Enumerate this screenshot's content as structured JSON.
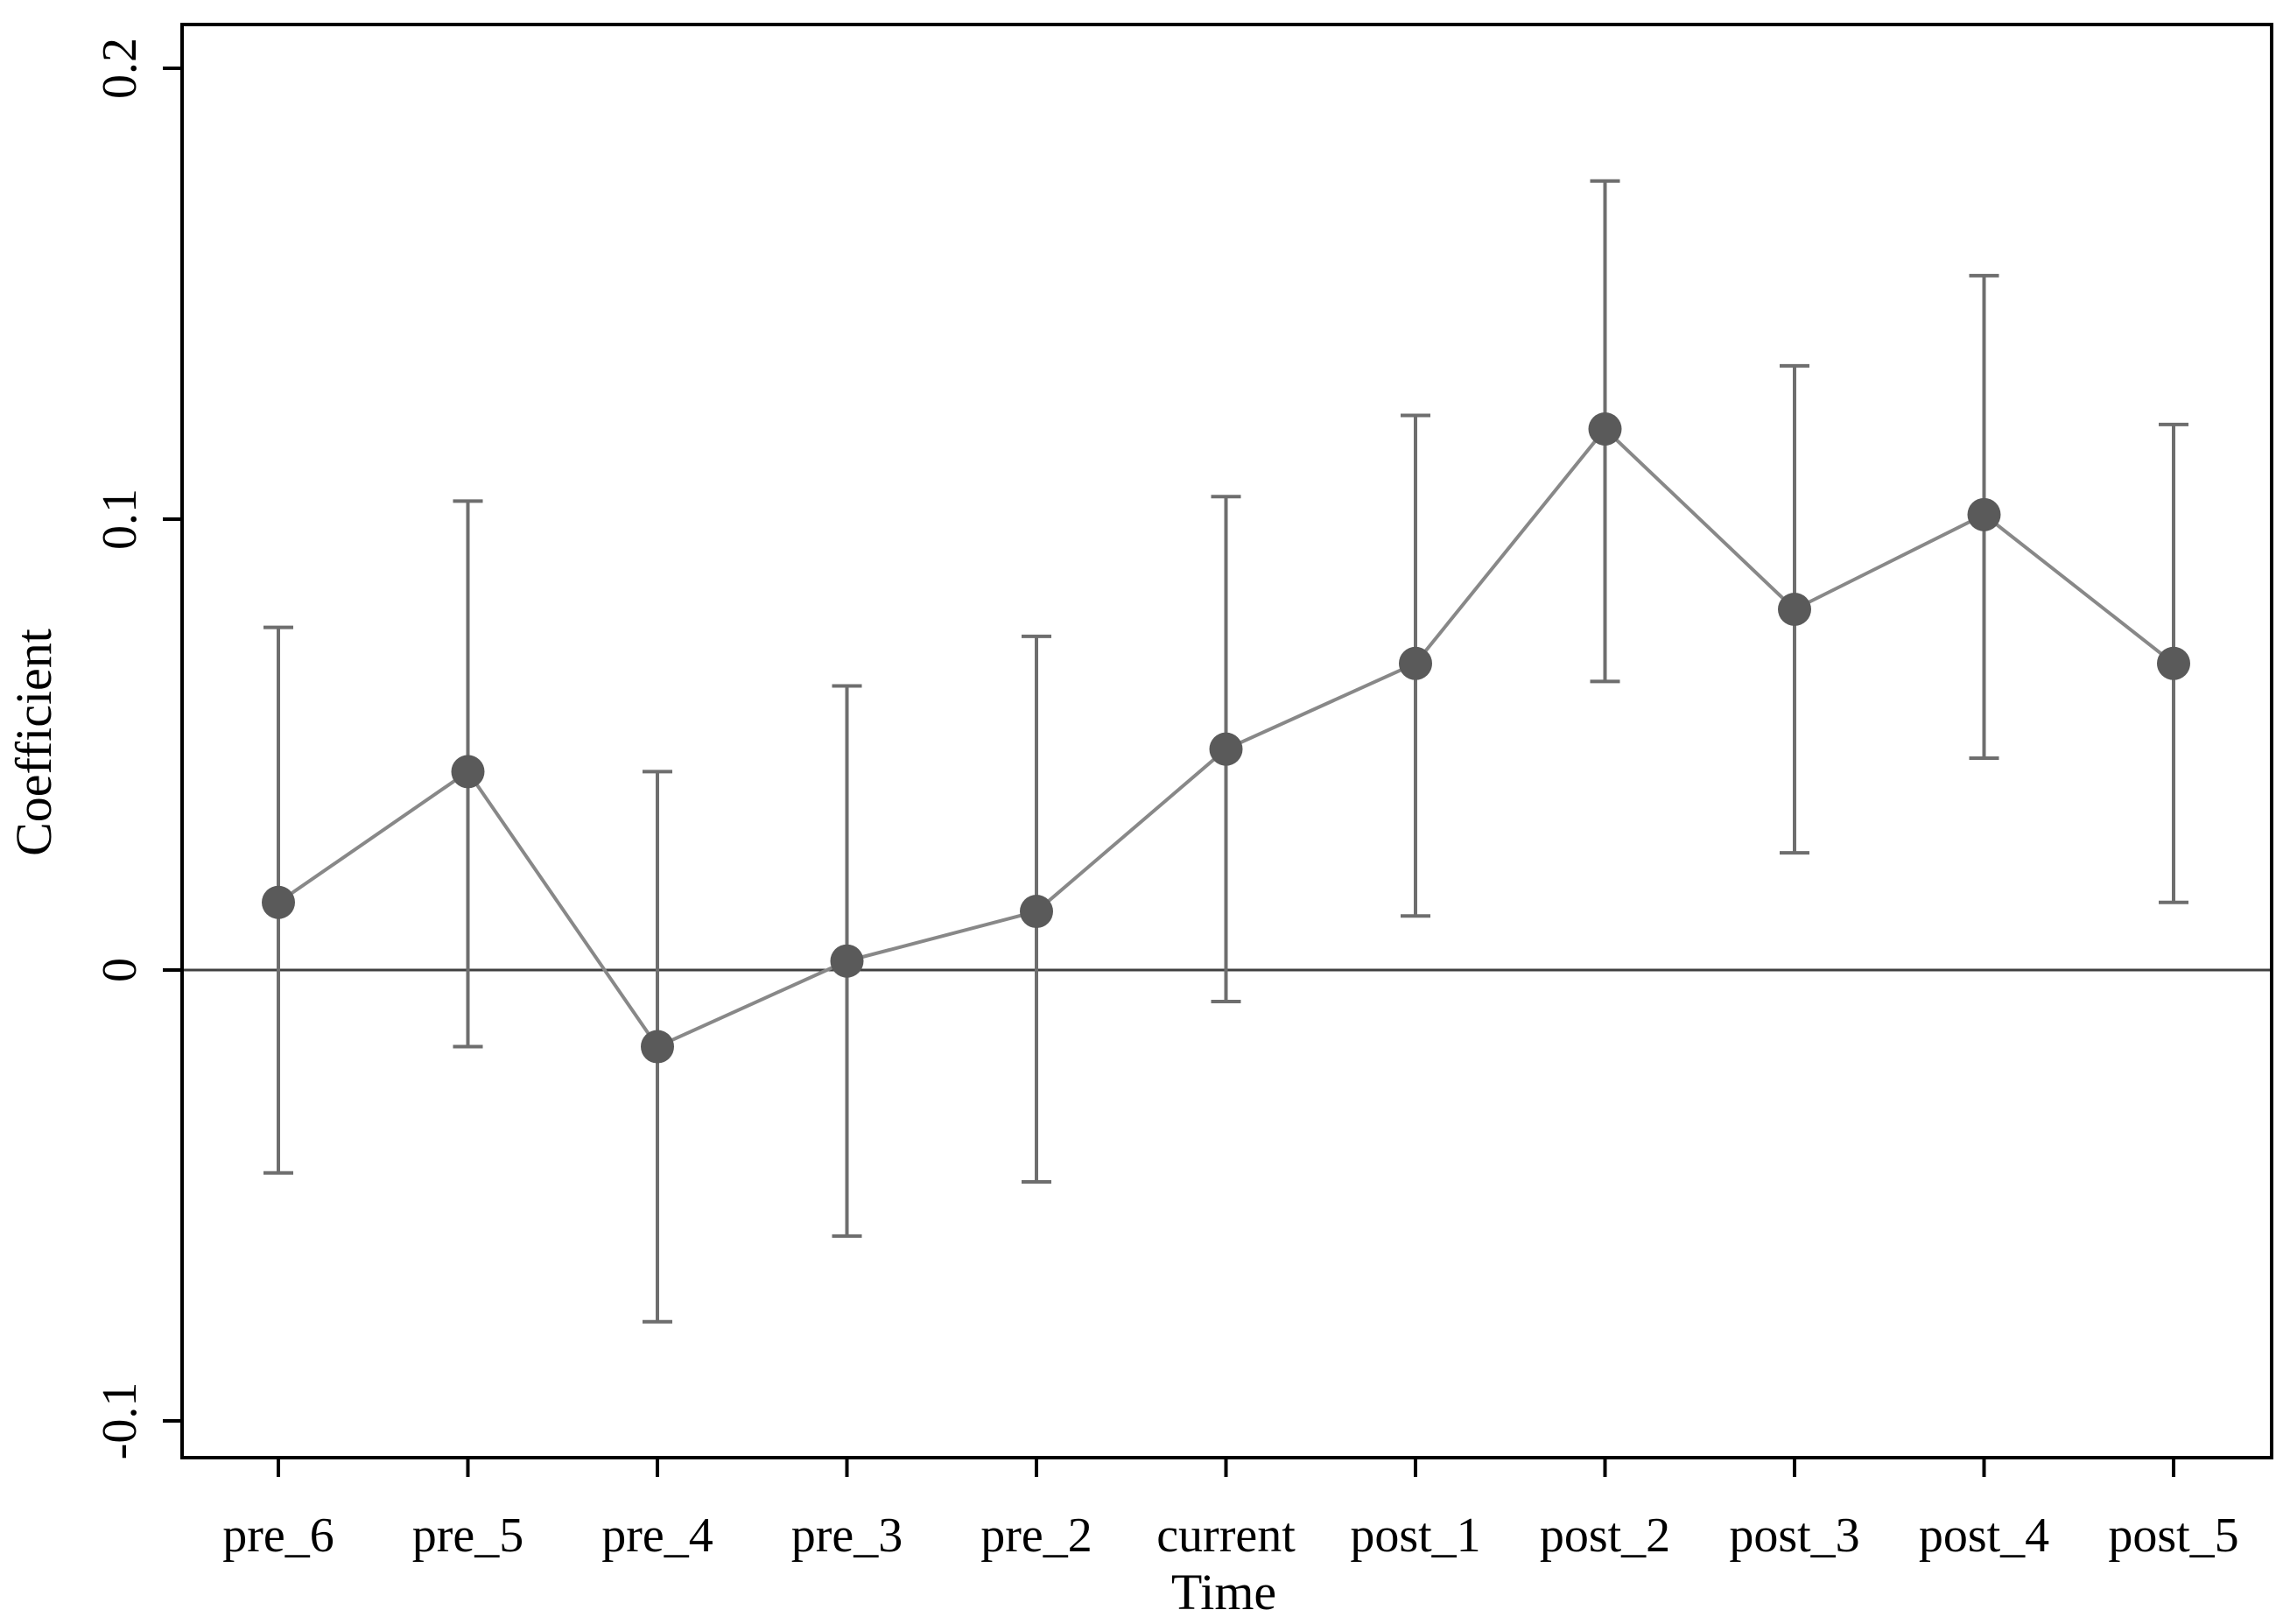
{
  "chart_data": {
    "type": "scatter",
    "title": "",
    "xlabel": "Time",
    "ylabel": "Coefficient",
    "categories": [
      "pre_6",
      "pre_5",
      "pre_4",
      "pre_3",
      "pre_2",
      "current",
      "post_1",
      "post_2",
      "post_3",
      "post_4",
      "post_5"
    ],
    "series": [
      {
        "values": [
          0.015,
          0.044,
          -0.017,
          0.002,
          0.013,
          0.049,
          0.068,
          0.12,
          0.08,
          0.101,
          0.068
        ],
        "ci_lower": [
          -0.045,
          -0.017,
          -0.078,
          -0.059,
          -0.047,
          -0.007,
          0.012,
          0.064,
          0.026,
          0.047,
          0.015
        ],
        "ci_upper": [
          0.076,
          0.104,
          0.044,
          0.063,
          0.074,
          0.105,
          0.123,
          0.175,
          0.134,
          0.154,
          0.121
        ]
      }
    ],
    "reference_line": 0,
    "ylim": [
      -0.108,
      0.208
    ],
    "yticks": [
      -0.1,
      0,
      0.1,
      0.2
    ],
    "ytick_labels": [
      "-0.1",
      "0",
      "0.1",
      "0.2"
    ],
    "grid": false,
    "colors": {
      "marker": "#5a5a5a",
      "line": "#888888",
      "errorbar": "#6e6e6e",
      "reference": "#404040",
      "axis": "#000000"
    }
  }
}
